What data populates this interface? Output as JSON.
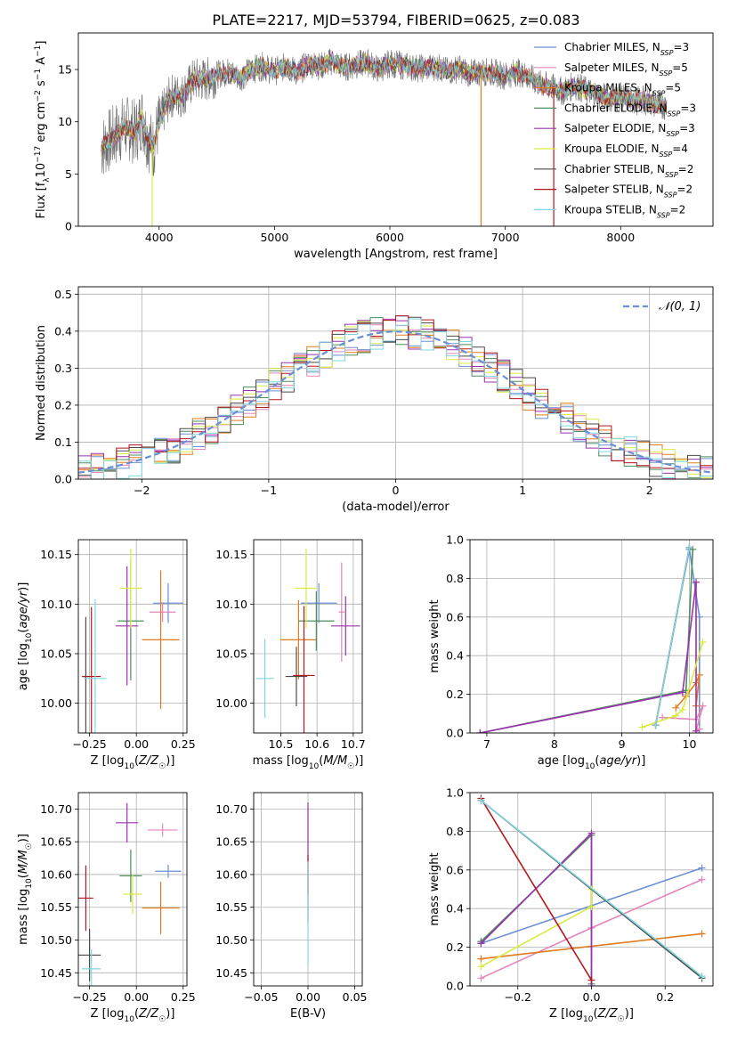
{
  "title": "PLATE=2217, MJD=53794, FIBERID=0625, z=0.083",
  "models": [
    {
      "label": "Chabrier MILES, N",
      "sub": "SSP",
      "n": "=3",
      "color": "#6a8fd6"
    },
    {
      "label": "Salpeter MILES, N",
      "sub": "SSP",
      "n": "=5",
      "color": "#e585b8"
    },
    {
      "label": "Kroupa MILES, N",
      "sub": "SSP",
      "n": "=5",
      "color": "#e07b1e"
    },
    {
      "label": "Chabrier ELODIE, N",
      "sub": "SSP",
      "n": "=3",
      "color": "#4e8e5e"
    },
    {
      "label": "Salpeter ELODIE, N",
      "sub": "SSP",
      "n": "=3",
      "color": "#9b30b0"
    },
    {
      "label": "Kroupa ELODIE, N",
      "sub": "SSP",
      "n": "=4",
      "color": "#d9ec42"
    },
    {
      "label": "Chabrier STELIB, N",
      "sub": "SSP",
      "n": "=2",
      "color": "#4a4a4a"
    },
    {
      "label": "Salpeter STELIB, N",
      "sub": "SSP",
      "n": "=2",
      "color": "#b3161c"
    },
    {
      "label": "Kroupa STELIB, N",
      "sub": "SSP",
      "n": "=2",
      "color": "#7fd6e0"
    }
  ],
  "chart_data": [
    {
      "id": "spectrum",
      "type": "line",
      "xlabel": "wavelength [Angstrom, rest frame]",
      "ylabel": "Flux [f",
      "xlim": [
        3300,
        8800
      ],
      "ylim": [
        0,
        18.5
      ],
      "xticks": [
        4000,
        5000,
        6000,
        7000,
        8000
      ],
      "yticks": [
        0,
        5,
        10,
        15
      ],
      "envelope": [
        [
          3500,
          7.5
        ],
        [
          3600,
          8.5
        ],
        [
          3700,
          9.5
        ],
        [
          3800,
          9.0
        ],
        [
          3850,
          10.5
        ],
        [
          3900,
          8.5
        ],
        [
          3950,
          7.5
        ],
        [
          4000,
          10.0
        ],
        [
          4100,
          12.5
        ],
        [
          4200,
          12.5
        ],
        [
          4300,
          14.0
        ],
        [
          4400,
          14.0
        ],
        [
          4500,
          14.5
        ],
        [
          4600,
          14.8
        ],
        [
          4700,
          14.2
        ],
        [
          4800,
          15.0
        ],
        [
          4900,
          15.3
        ],
        [
          5000,
          14.8
        ],
        [
          5100,
          15.3
        ],
        [
          5200,
          14.7
        ],
        [
          5300,
          15.6
        ],
        [
          5400,
          15.3
        ],
        [
          5500,
          15.8
        ],
        [
          5600,
          15.2
        ],
        [
          5700,
          15.4
        ],
        [
          5800,
          15.7
        ],
        [
          5900,
          15.0
        ],
        [
          6000,
          15.6
        ],
        [
          6100,
          15.4
        ],
        [
          6200,
          15.2
        ],
        [
          6300,
          15.1
        ],
        [
          6400,
          15.3
        ],
        [
          6500,
          14.8
        ],
        [
          6600,
          15.1
        ],
        [
          6700,
          14.6
        ],
        [
          6800,
          14.8
        ],
        [
          6900,
          14.7
        ],
        [
          7000,
          14.4
        ],
        [
          7100,
          14.8
        ],
        [
          7200,
          14.3
        ],
        [
          7300,
          13.6
        ],
        [
          7400,
          13.3
        ],
        [
          7500,
          12.9
        ],
        [
          7600,
          13.5
        ],
        [
          7700,
          13.0
        ],
        [
          7800,
          12.6
        ],
        [
          7900,
          12.2
        ],
        [
          8000,
          12.4
        ],
        [
          8100,
          12.0
        ],
        [
          8200,
          12.1
        ],
        [
          8300,
          11.7
        ],
        [
          8400,
          11.5
        ]
      ],
      "drops": [
        [
          3940,
          0,
          "#d9ec42"
        ],
        [
          6790,
          0,
          "#e07b1e"
        ],
        [
          7420,
          0,
          "#b3161c"
        ]
      ]
    },
    {
      "id": "residuals",
      "type": "histogram",
      "xlabel": "(data-model)/error",
      "ylabel": "Normed distribution",
      "xlim": [
        -2.5,
        2.5
      ],
      "ylim": [
        0,
        0.52
      ],
      "xticks": [
        -2,
        -1,
        0,
        1,
        2
      ],
      "yticks": [
        0.0,
        0.1,
        0.2,
        0.3,
        0.4,
        0.5
      ],
      "legend": "N(0, 1)",
      "bin_width": 0.1
    },
    {
      "id": "age-metallicity",
      "type": "errorbar",
      "xlabel": "Z [log",
      "ylabel": "age  [log",
      "xlim": [
        -0.31,
        0.27
      ],
      "ylim": [
        9.97,
        10.165
      ],
      "xticks": [
        -0.25,
        0.0,
        0.25
      ],
      "yticks": [
        10.0,
        10.05,
        10.1,
        10.15
      ],
      "points": [
        {
          "x": 0.17,
          "xerr": 0.08,
          "y": 10.101,
          "yerr": 0.02
        },
        {
          "x": 0.14,
          "xerr": 0.07,
          "y": 10.092,
          "yerr": 0.01
        },
        {
          "x": 0.13,
          "xerr": 0.1,
          "y": 10.064,
          "yerr": 0.07
        },
        {
          "x": -0.03,
          "xerr": 0.07,
          "y": 10.083,
          "yerr": 0.06
        },
        {
          "x": -0.05,
          "xerr": 0.06,
          "y": 10.078,
          "yerr": 0.06
        },
        {
          "x": -0.03,
          "xerr": 0.06,
          "y": 10.116,
          "yerr": 0.04
        },
        {
          "x": -0.27,
          "xerr": 0.02,
          "y": 10.027,
          "yerr": 0.06
        },
        {
          "x": -0.24,
          "xerr": 0.05,
          "y": 10.027,
          "yerr": 0.07
        },
        {
          "x": -0.22,
          "xerr": 0.06,
          "y": 10.025,
          "yerr": 0.08
        }
      ]
    },
    {
      "id": "age-mass",
      "type": "errorbar",
      "xlabel": "mass [log",
      "ylabel": "",
      "xlim": [
        10.425,
        10.725
      ],
      "ylim": [
        9.97,
        10.165
      ],
      "xticks": [
        10.5,
        10.6,
        10.7
      ],
      "yticks": [
        10.0,
        10.05,
        10.1,
        10.15
      ],
      "points": [
        {
          "x": 10.605,
          "xerr": 0.05,
          "y": 10.101,
          "yerr": 0.02
        },
        {
          "x": 10.668,
          "xerr": 0.008,
          "y": 10.092,
          "yerr": 0.05
        },
        {
          "x": 10.549,
          "xerr": 0.05,
          "y": 10.064,
          "yerr": 0.04
        },
        {
          "x": 10.598,
          "xerr": 0.05,
          "y": 10.083,
          "yerr": 0.03
        },
        {
          "x": 10.679,
          "xerr": 0.04,
          "y": 10.078,
          "yerr": 0.03
        },
        {
          "x": 10.57,
          "xerr": 0.03,
          "y": 10.116,
          "yerr": 0.04
        },
        {
          "x": 10.543,
          "xerr": 0.03,
          "y": 10.027,
          "yerr": 0.03
        },
        {
          "x": 10.564,
          "xerr": 0.03,
          "y": 10.028,
          "yerr": 0.07
        },
        {
          "x": 10.456,
          "xerr": 0.025,
          "y": 10.025,
          "yerr": 0.04
        }
      ]
    },
    {
      "id": "weight-age",
      "type": "line",
      "xlabel": "age  [log",
      "ylabel": "mass weight",
      "xlim": [
        6.75,
        10.35
      ],
      "ylim": [
        0,
        1
      ],
      "xticks": [
        7,
        8,
        9,
        10
      ],
      "yticks": [
        0.0,
        0.2,
        0.4,
        0.6,
        0.8,
        1.0
      ],
      "series": [
        {
          "points": [
            [
              9.5,
              0.04
            ],
            [
              10.0,
              0.95
            ],
            [
              10.15,
              0.6
            ],
            [
              10.15,
              0.0
            ]
          ]
        },
        {
          "points": [
            [
              9.6,
              0.08
            ],
            [
              10.1,
              0.07
            ],
            [
              10.2,
              0.14
            ],
            [
              10.1,
              0.01
            ],
            [
              10.15,
              0.02
            ]
          ]
        },
        {
          "points": [
            [
              9.8,
              0.13
            ],
            [
              9.95,
              0.19
            ],
            [
              10.1,
              0.26
            ],
            [
              10.15,
              0.3
            ],
            [
              10.1,
              0.14
            ]
          ]
        },
        {
          "points": [
            [
              6.9,
              0.0
            ],
            [
              9.95,
              0.22
            ],
            [
              10.05,
              0.95
            ]
          ]
        },
        {
          "points": [
            [
              6.9,
              0.0
            ],
            [
              9.9,
              0.21
            ],
            [
              10.1,
              0.78
            ],
            [
              10.1,
              0.01
            ]
          ]
        },
        {
          "points": [
            [
              9.3,
              0.03
            ],
            [
              9.8,
              0.09
            ],
            [
              9.9,
              0.12
            ],
            [
              10.2,
              0.47
            ]
          ]
        },
        {
          "points": [
            [
              9.5,
              0.04
            ],
            [
              10.0,
              0.96
            ]
          ]
        },
        {
          "points": [
            [
              9.5,
              0.04
            ],
            [
              10.0,
              0.96
            ]
          ]
        },
        {
          "points": [
            [
              9.5,
              0.04
            ],
            [
              10.0,
              0.96
            ]
          ]
        }
      ]
    },
    {
      "id": "mass-metallicity",
      "type": "errorbar",
      "xlabel": "Z [log",
      "ylabel": "mass [log",
      "xlim": [
        -0.31,
        0.27
      ],
      "ylim": [
        10.43,
        10.725
      ],
      "xticks": [
        -0.25,
        0.0,
        0.25
      ],
      "yticks": [
        10.45,
        10.5,
        10.55,
        10.6,
        10.65,
        10.7
      ],
      "points": [
        {
          "x": 0.17,
          "xerr": 0.07,
          "y": 10.605,
          "yerr": 0.01
        },
        {
          "x": 0.14,
          "xerr": 0.08,
          "y": 10.668,
          "yerr": 0.01
        },
        {
          "x": 0.13,
          "xerr": 0.1,
          "y": 10.549,
          "yerr": 0.04
        },
        {
          "x": -0.03,
          "xerr": 0.06,
          "y": 10.598,
          "yerr": 0.04
        },
        {
          "x": -0.05,
          "xerr": 0.06,
          "y": 10.679,
          "yerr": 0.03
        },
        {
          "x": -0.02,
          "xerr": 0.05,
          "y": 10.57,
          "yerr": 0.03
        },
        {
          "x": -0.25,
          "xerr": 0.06,
          "y": 10.477,
          "yerr": 0.04
        },
        {
          "x": -0.27,
          "xerr": 0.04,
          "y": 10.564,
          "yerr": 0.05
        },
        {
          "x": -0.24,
          "xerr": 0.05,
          "y": 10.456,
          "yerr": 0.03
        }
      ]
    },
    {
      "id": "mass-extinction",
      "type": "errorbar",
      "xlabel": "E(B-V)",
      "ylabel": "",
      "xlim": [
        -0.058,
        0.058
      ],
      "ylim": [
        10.43,
        10.725
      ],
      "xticks": [
        -0.05,
        0.0,
        0.05
      ],
      "yticks": [
        10.45,
        10.5,
        10.55,
        10.6,
        10.65,
        10.7
      ],
      "points": [
        {
          "x": 0.0,
          "xerr": 0,
          "y": 10.64,
          "yerr": 0.07
        },
        {
          "x": 0.0,
          "xerr": 0,
          "y": 10.58,
          "yerr": 0.05
        },
        {
          "x": 0.0,
          "xerr": 0,
          "y": 10.54,
          "yerr": 0.08
        }
      ]
    },
    {
      "id": "weight-metallicity",
      "type": "line",
      "xlabel": "Z [log",
      "ylabel": "mass weight",
      "xlim": [
        -0.33,
        0.33
      ],
      "ylim": [
        0,
        1
      ],
      "xticks": [
        -0.2,
        0.0,
        0.2
      ],
      "yticks": [
        0.0,
        0.2,
        0.4,
        0.6,
        0.8,
        1.0
      ],
      "series": [
        {
          "points": [
            [
              -0.3,
              0.22
            ],
            [
              0.3,
              0.61
            ]
          ]
        },
        {
          "points": [
            [
              -0.3,
              0.04
            ],
            [
              0.0,
              0.3
            ],
            [
              0.3,
              0.55
            ]
          ]
        },
        {
          "points": [
            [
              -0.3,
              0.14
            ],
            [
              0.3,
              0.27
            ]
          ]
        },
        {
          "points": [
            [
              -0.3,
              0.23
            ],
            [
              0.0,
              0.78
            ],
            [
              0.0,
              0.01
            ]
          ]
        },
        {
          "points": [
            [
              -0.3,
              0.22
            ],
            [
              0.0,
              0.79
            ],
            [
              0.0,
              0.0
            ]
          ]
        },
        {
          "points": [
            [
              -0.3,
              0.1
            ],
            [
              0.0,
              0.41
            ],
            [
              0.0,
              0.5
            ]
          ]
        },
        {
          "points": [
            [
              -0.3,
              0.96
            ],
            [
              0.3,
              0.04
            ]
          ]
        },
        {
          "points": [
            [
              -0.3,
              0.97
            ],
            [
              0.0,
              0.03
            ]
          ]
        },
        {
          "points": [
            [
              -0.3,
              0.96
            ],
            [
              0.3,
              0.05
            ]
          ]
        }
      ]
    }
  ]
}
